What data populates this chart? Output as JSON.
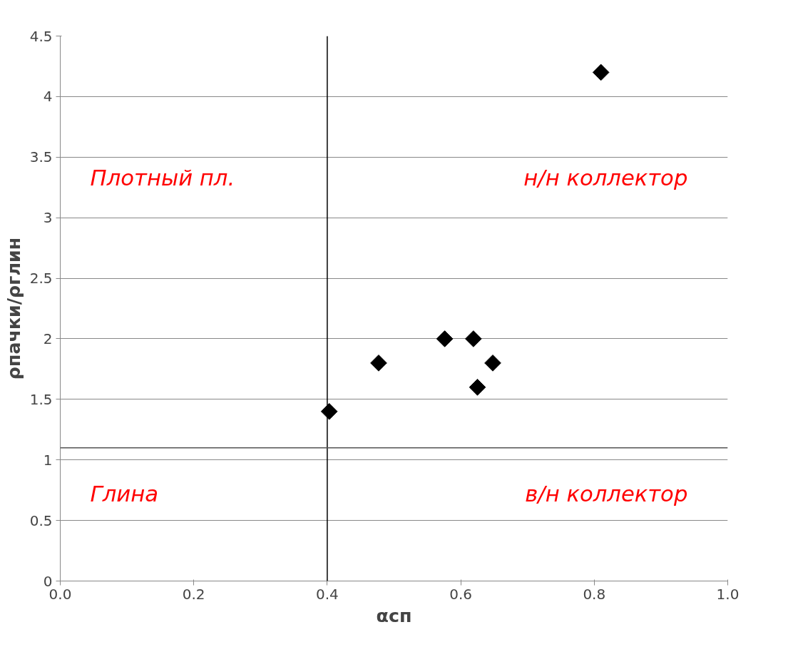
{
  "chart_data": {
    "type": "scatter",
    "xlabel": "αсп",
    "ylabel": "ρпачки/ρглин",
    "x": [
      0.403,
      0.477,
      0.576,
      0.619,
      0.648,
      0.625,
      0.81
    ],
    "series": [
      {
        "color": "#000000",
        "values": [
          1.4,
          1.8,
          2.0,
          2.0,
          1.8,
          1.6,
          4.2
        ]
      }
    ],
    "marker": "diamond",
    "xlim": [
      0,
      1
    ],
    "xticks": [
      {
        "value": 0,
        "label": "0.0"
      },
      {
        "value": 0.2,
        "label": "0.2"
      },
      {
        "value": 0.4,
        "label": "0.4"
      },
      {
        "value": 0.6,
        "label": "0.6"
      },
      {
        "value": 0.8,
        "label": "0.8"
      },
      {
        "value": 1,
        "label": "1.0"
      }
    ],
    "ylim": [
      0,
      4.5
    ],
    "yticks": [
      0,
      0.5,
      1,
      1.5,
      2,
      2.5,
      3,
      3.5,
      4,
      4.5
    ],
    "grid": "y",
    "ref_lines": [
      {
        "axis": "x",
        "value": 0.4,
        "color": "#000000"
      },
      {
        "axis": "y",
        "value": 1.1,
        "color": "#555555"
      }
    ],
    "annotations": [
      "Плотный пл.",
      "н/н коллектор",
      "Глина",
      "в/н коллектор"
    ]
  }
}
